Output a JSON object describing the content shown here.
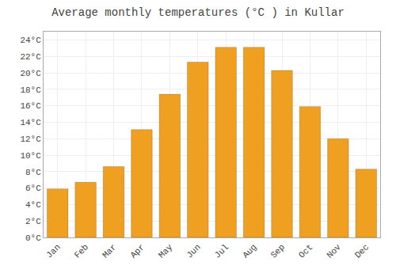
{
  "chart_data": {
    "type": "bar",
    "title": "Average monthly temperatures (°C ) in Kullar",
    "categories": [
      "Jan",
      "Feb",
      "Mar",
      "Apr",
      "May",
      "Jun",
      "Jul",
      "Aug",
      "Sep",
      "Oct",
      "Nov",
      "Dec"
    ],
    "values": [
      5.9,
      6.7,
      8.6,
      13.1,
      17.4,
      21.3,
      23.1,
      23.1,
      20.3,
      15.9,
      12.0,
      8.3
    ],
    "color": "#F0A020",
    "ylim": [
      0,
      25
    ],
    "yticks": [
      {
        "value": 0,
        "label": "0°C"
      },
      {
        "value": 2,
        "label": "2°C"
      },
      {
        "value": 4,
        "label": "4°C"
      },
      {
        "value": 6,
        "label": "6°C"
      },
      {
        "value": 8,
        "label": "8°C"
      },
      {
        "value": 10,
        "label": "10°C"
      },
      {
        "value": 12,
        "label": "12°C"
      },
      {
        "value": 14,
        "label": "14°C"
      },
      {
        "value": 16,
        "label": "16°C"
      },
      {
        "value": 18,
        "label": "18°C"
      },
      {
        "value": 20,
        "label": "20°C"
      },
      {
        "value": 22,
        "label": "22°C"
      },
      {
        "value": 24,
        "label": "24°C"
      }
    ],
    "grid": true
  }
}
